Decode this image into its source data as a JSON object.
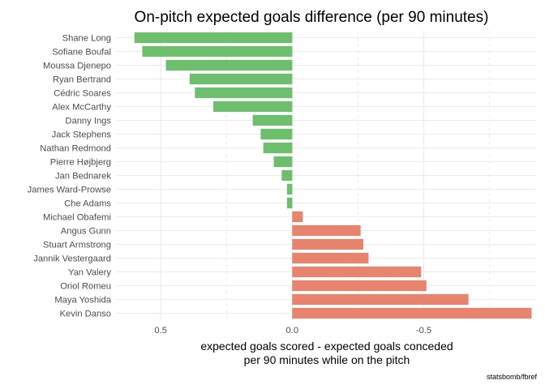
{
  "chart_data": {
    "type": "bar",
    "orientation": "horizontal",
    "title": "On-pitch expected goals difference (per 90 minutes)",
    "xlabel_lines": [
      "expected goals scored - expected goals conceded",
      "per 90 minutes while on the pitch"
    ],
    "caption": "statsbomb/fbref",
    "x_axis_reversed": true,
    "xlim": [
      0.67,
      -0.93
    ],
    "x_ticks": [
      0.5,
      0.0,
      -0.5
    ],
    "x_tick_labels": [
      "0.5",
      "0.0",
      "-0.5"
    ],
    "grid": true,
    "colors": {
      "positive": "#6dbf6d",
      "negative": "#e8836e",
      "grid_major": "#ebebeb",
      "grid_minor": "#f2f2f2"
    },
    "categories": [
      "Shane Long",
      "Sofiane Boufal",
      "Moussa Djenepo",
      "Ryan Bertrand",
      "Cédric Soares",
      "Alex McCarthy",
      "Danny Ings",
      "Jack Stephens",
      "Nathan Redmond",
      "Pierre Højbjerg",
      "Jan Bednarek",
      "James Ward-Prowse",
      "Che Adams",
      "Michael Obafemi",
      "Angus Gunn",
      "Stuart Armstrong",
      "Jannik Vestergaard",
      "Yan Valery",
      "Oriol Romeu",
      "Maya Yoshida",
      "Kevin Danso"
    ],
    "values": [
      0.6,
      0.57,
      0.48,
      0.39,
      0.37,
      0.3,
      0.15,
      0.12,
      0.11,
      0.07,
      0.04,
      0.02,
      0.02,
      -0.04,
      -0.26,
      -0.27,
      -0.29,
      -0.49,
      -0.51,
      -0.67,
      -0.91
    ]
  }
}
